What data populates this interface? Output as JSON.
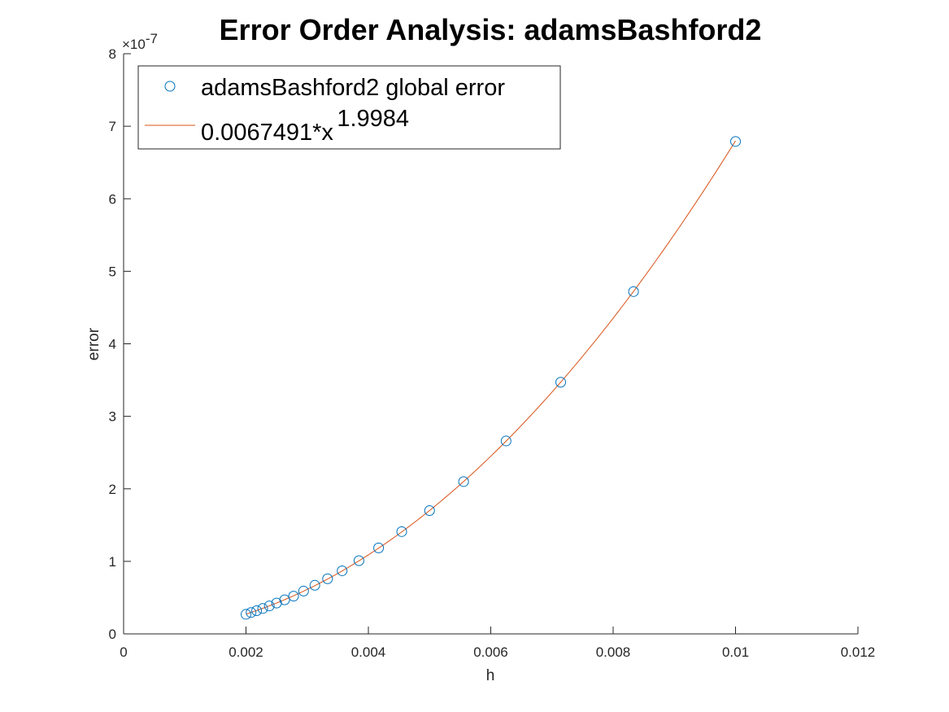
{
  "chart_data": {
    "type": "scatter",
    "title": "Error Order Analysis: adamsBashford2",
    "xlabel": "h",
    "ylabel": "error",
    "xlim": [
      0,
      0.012
    ],
    "ylim": [
      0,
      8e-07
    ],
    "x_ticks": [
      0,
      0.002,
      0.004,
      0.006,
      0.008,
      0.01,
      0.012
    ],
    "x_tick_labels": [
      "0",
      "0.002",
      "0.004",
      "0.006",
      "0.008",
      "0.01",
      "0.012"
    ],
    "y_ticks": [
      0,
      1e-07,
      2e-07,
      3e-07,
      4e-07,
      5e-07,
      6e-07,
      7e-07,
      8e-07
    ],
    "y_tick_labels": [
      "0",
      "1",
      "2",
      "3",
      "4",
      "5",
      "6",
      "7",
      "8"
    ],
    "y_exponent": {
      "base": "×10",
      "power": "-7"
    },
    "grid": false,
    "legend_position": "top-left",
    "series": [
      {
        "name": "adamsBashford2 global error",
        "kind": "markers",
        "marker": "circle",
        "color": "#0072BD",
        "x": [
          0.01,
          0.008333,
          0.007143,
          0.00625,
          0.005556,
          0.005,
          0.004545,
          0.004167,
          0.003846,
          0.003571,
          0.003333,
          0.003125,
          0.002941,
          0.002778,
          0.002632,
          0.0025,
          0.002381,
          0.002273,
          0.002174,
          0.002083,
          0.002
        ],
        "y": [
          6.79e-07,
          4.72e-07,
          3.47e-07,
          2.66e-07,
          2.1e-07,
          1.7e-07,
          1.41e-07,
          1.185e-07,
          1.01e-07,
          8.7e-08,
          7.6e-08,
          6.7e-08,
          5.9e-08,
          5.2e-08,
          4.7e-08,
          4.25e-08,
          3.85e-08,
          3.5e-08,
          3.2e-08,
          2.95e-08,
          2.7e-08
        ]
      },
      {
        "name": "0.0067491*x",
        "name_superscript": "1.9984",
        "kind": "line",
        "color": "#D95319",
        "coefficient": 0.0067491,
        "exponent": 1.9984,
        "x_range": [
          0.002,
          0.01
        ]
      }
    ]
  }
}
